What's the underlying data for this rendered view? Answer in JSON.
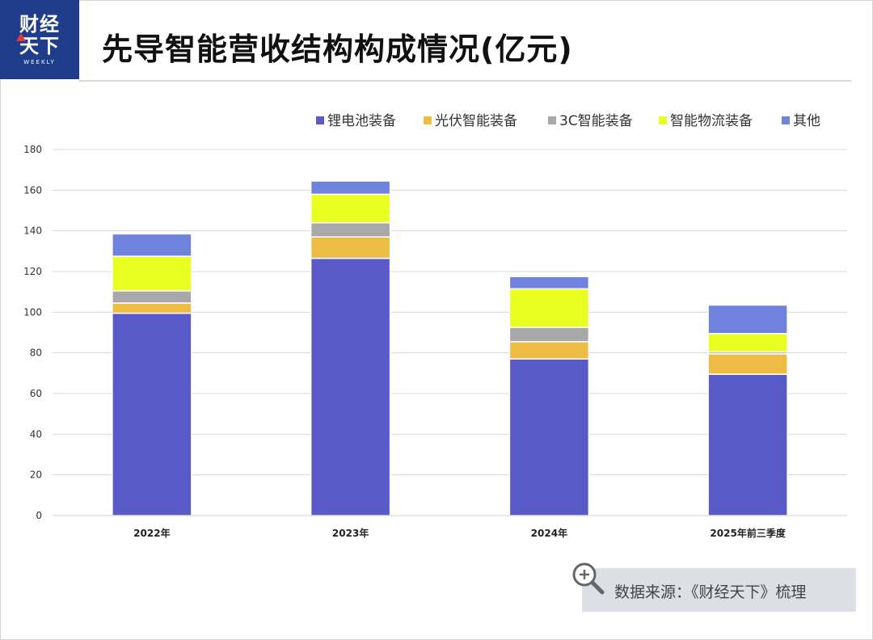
{
  "header": {
    "logo_line1": "财经",
    "logo_line2": "天下",
    "logo_sub": "WEEKLY",
    "title": "先导智能营收结构构成情况(亿元)"
  },
  "source": {
    "text": "数据来源：《财经天下》梳理"
  },
  "colors": {
    "logo_bg": "#1f3d8a",
    "lithium": "#5959c8",
    "pv": "#ecbc45",
    "c3": "#a8a8a8",
    "logistics": "#e9ff22",
    "other": "#6f83dc"
  },
  "chart_data": {
    "type": "bar",
    "stacked": true,
    "categories": [
      "2022年",
      "2023年",
      "2024年",
      "2025年前三季度"
    ],
    "series": [
      {
        "name": "锂电池装备",
        "color": "#5959c8",
        "values": [
          99.5,
          126.5,
          77,
          69.5
        ]
      },
      {
        "name": "光伏智能装备",
        "color": "#ecbc45",
        "values": [
          5,
          10.5,
          8.5,
          10
        ]
      },
      {
        "name": "3C智能装备",
        "color": "#a8a8a8",
        "values": [
          6,
          7,
          7,
          1
        ]
      },
      {
        "name": "智能物流装备",
        "color": "#e9ff22",
        "values": [
          17,
          14,
          19,
          9
        ]
      },
      {
        "name": "其他",
        "color": "#6f83dc",
        "values": [
          11,
          6.5,
          6,
          14
        ]
      }
    ],
    "ylim": [
      0,
      180
    ],
    "yticks": [
      0,
      20,
      40,
      60,
      80,
      100,
      120,
      140,
      160,
      180
    ],
    "grid": true,
    "legend_position": "top-right"
  }
}
